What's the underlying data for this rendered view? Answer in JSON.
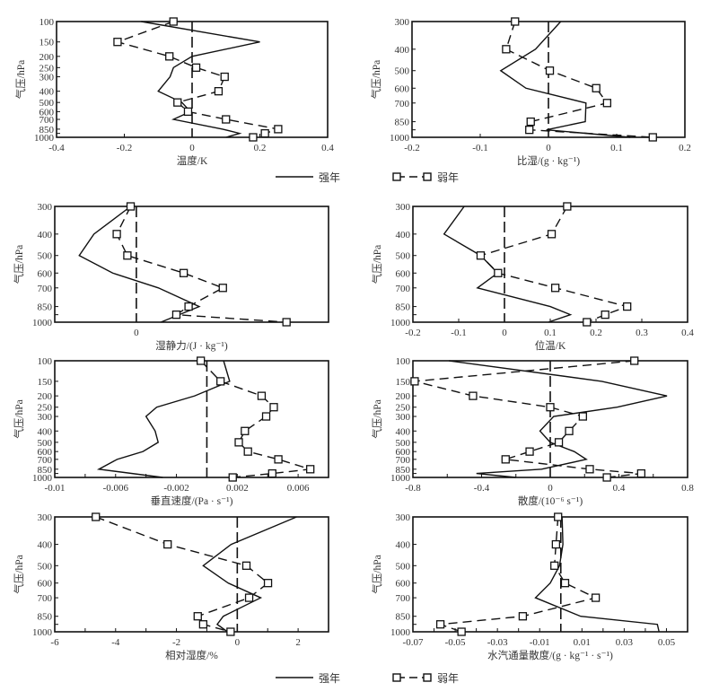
{
  "legend": {
    "strong": "强年",
    "weak": "弱年"
  },
  "chart_data": [
    {
      "type": "line",
      "id": "temperature",
      "xlabel": "温度/K",
      "ylabel": "气压/hPa",
      "xlim": [
        -0.4,
        0.4
      ],
      "xticks": [
        -0.4,
        -0.2,
        0,
        0.2,
        0.4
      ],
      "xtick_labels": [
        "-0.4",
        "-0.2",
        "0",
        "0.2",
        "0.4"
      ],
      "ylim": [
        100,
        1000
      ],
      "yscale": "log",
      "yticks": [
        100,
        150,
        200,
        250,
        300,
        400,
        500,
        600,
        700,
        850,
        925,
        1000
      ],
      "ytick_labels": [
        "100",
        "150",
        "200",
        "250",
        "300",
        "400",
        "500",
        "600",
        "700",
        "850",
        "",
        "1000"
      ],
      "series": [
        {
          "name": "强年",
          "style": "solid",
          "levels": [
            100,
            150,
            200,
            250,
            300,
            400,
            500,
            600,
            700,
            850,
            925,
            1000
          ],
          "values": [
            -0.15,
            0.2,
            0.0,
            -0.055,
            -0.065,
            -0.1,
            -0.03,
            -0.005,
            -0.055,
            0.09,
            0.14,
            0.1
          ]
        },
        {
          "name": "弱年",
          "style": "dashed-square",
          "levels": [
            100,
            150,
            200,
            250,
            300,
            400,
            500,
            600,
            700,
            850,
            925,
            1000
          ],
          "values": [
            -0.055,
            -0.22,
            -0.067,
            0.012,
            0.096,
            0.078,
            -0.043,
            -0.012,
            0.1,
            0.254,
            0.215,
            0.18
          ]
        }
      ]
    },
    {
      "type": "line",
      "id": "specific-humidity",
      "xlabel": "比湿/(g · kg⁻¹)",
      "ylabel": "气压/hPa",
      "xlim": [
        -0.2,
        0.2
      ],
      "xticks": [
        -0.2,
        -0.1,
        0,
        0.1,
        0.2
      ],
      "xtick_labels": [
        "-0.2",
        "-0.1",
        "0",
        "0.1",
        "0.2"
      ],
      "ylim": [
        300,
        1000
      ],
      "yscale": "log",
      "yticks": [
        300,
        400,
        500,
        600,
        700,
        850,
        925,
        1000
      ],
      "ytick_labels": [
        "300",
        "400",
        "500",
        "600",
        "700",
        "850",
        "",
        "1000"
      ],
      "series": [
        {
          "name": "强年",
          "style": "solid",
          "levels": [
            300,
            400,
            500,
            600,
            700,
            850,
            925,
            1000
          ],
          "values": [
            0.018,
            -0.019,
            -0.07,
            -0.033,
            0.055,
            0.054,
            -0.003,
            0.12
          ]
        },
        {
          "name": "弱年",
          "style": "dashed-square",
          "levels": [
            300,
            400,
            500,
            600,
            700,
            850,
            925,
            1000
          ],
          "values": [
            -0.049,
            -0.062,
            0.002,
            0.07,
            0.086,
            -0.026,
            -0.028,
            0.153
          ]
        }
      ]
    },
    {
      "type": "line",
      "id": "moist-static-energy",
      "xlabel": "湿静力/(J · kg⁻¹)",
      "ylabel": "气压/hPa",
      "xlim": [
        -1,
        2.355
      ],
      "xticks": [
        0
      ],
      "xtick_labels": [
        "0"
      ],
      "ylim": [
        300,
        1000
      ],
      "yscale": "log",
      "yticks": [
        300,
        400,
        500,
        600,
        700,
        850,
        925,
        1000
      ],
      "ytick_labels": [
        "300",
        "400",
        "500",
        "600",
        "700",
        "850",
        "",
        "1000"
      ],
      "series": [
        {
          "name": "强年",
          "style": "solid",
          "levels": [
            300,
            400,
            500,
            600,
            700,
            850,
            1000
          ],
          "values": [
            -0.07,
            -0.52,
            -0.7,
            -0.29,
            0.27,
            0.77,
            0.3
          ]
        },
        {
          "name": "弱年",
          "style": "dashed-square",
          "levels": [
            300,
            400,
            500,
            600,
            700,
            850,
            925,
            1000
          ],
          "values": [
            -0.07,
            -0.24,
            -0.11,
            0.58,
            1.06,
            0.64,
            0.49,
            1.84
          ]
        }
      ]
    },
    {
      "type": "line",
      "id": "potential-temperature",
      "xlabel": "位温/K",
      "ylabel": "气压/hPa",
      "xlim": [
        -0.2,
        0.4
      ],
      "xticks": [
        -0.2,
        -0.1,
        0,
        0.1,
        0.2,
        0.3,
        0.4
      ],
      "xtick_labels": [
        "-0.2",
        "-0.1",
        "0",
        "0.1",
        "0.2",
        "0.3",
        "0.4"
      ],
      "ylim": [
        300,
        1000
      ],
      "yscale": "log",
      "yticks": [
        300,
        400,
        500,
        600,
        700,
        850,
        925,
        1000
      ],
      "ytick_labels": [
        "300",
        "400",
        "500",
        "600",
        "700",
        "850",
        "",
        "1000"
      ],
      "series": [
        {
          "name": "强年",
          "style": "solid",
          "levels": [
            300,
            400,
            500,
            600,
            700,
            850,
            925,
            1000
          ],
          "values": [
            -0.088,
            -0.132,
            -0.052,
            -0.015,
            -0.059,
            0.1,
            0.144,
            0.096
          ]
        },
        {
          "name": "弱年",
          "style": "dashed-square",
          "levels": [
            300,
            400,
            500,
            600,
            700,
            850,
            925,
            1000
          ],
          "values": [
            0.137,
            0.103,
            -0.052,
            -0.014,
            0.111,
            0.268,
            0.22,
            0.18
          ]
        }
      ]
    },
    {
      "type": "line",
      "id": "vertical-velocity",
      "xlabel": "垂直速度/(Pa · s⁻¹)",
      "ylabel": "气压/hPa",
      "xlim": [
        -0.01,
        0.008
      ],
      "xticks": [
        -0.01,
        -0.008,
        -0.006,
        -0.004,
        -0.002,
        0,
        0.002,
        0.004,
        0.006,
        0.008
      ],
      "xtick_labels": [
        "-0.01",
        "",
        "-0.006",
        "",
        "-0.002",
        "",
        "0.002",
        "",
        "0.006",
        ""
      ],
      "ylim": [
        100,
        1000
      ],
      "yscale": "log",
      "yticks": [
        100,
        150,
        200,
        250,
        300,
        400,
        500,
        600,
        700,
        850,
        925,
        1000
      ],
      "ytick_labels": [
        "100",
        "150",
        "200",
        "250",
        "300",
        "400",
        "500",
        "600",
        "700",
        "850",
        "",
        "1000"
      ],
      "series": [
        {
          "name": "强年",
          "style": "solid",
          "levels": [
            100,
            150,
            200,
            250,
            300,
            400,
            500,
            600,
            700,
            850,
            1000
          ],
          "values": [
            0.0011,
            0.0015,
            -0.0008,
            -0.0033,
            -0.004,
            -0.0034,
            -0.0032,
            -0.0042,
            -0.0059,
            -0.0071,
            -0.0029
          ]
        },
        {
          "name": "弱年",
          "style": "dashed-square",
          "levels": [
            100,
            150,
            200,
            250,
            300,
            400,
            500,
            600,
            700,
            850,
            925,
            1000
          ],
          "values": [
            -0.0004,
            0.0009,
            0.0036,
            0.0044,
            0.0039,
            0.0025,
            0.0021,
            0.0027,
            0.0047,
            0.0068,
            0.0043,
            0.0017
          ]
        }
      ]
    },
    {
      "type": "line",
      "id": "divergence",
      "xlabel": "散度/(10⁻⁶ s⁻¹)",
      "ylabel": "气压/hPa",
      "xlim": [
        -0.8,
        0.8
      ],
      "xticks": [
        -0.8,
        -0.6,
        -0.4,
        -0.2,
        0,
        0.2,
        0.4,
        0.6,
        0.8
      ],
      "xtick_labels": [
        "-0.8",
        "",
        "-0.4",
        "",
        "0",
        "",
        "0.4",
        "",
        "0.8"
      ],
      "ylim": [
        100,
        1000
      ],
      "yscale": "log",
      "yticks": [
        100,
        150,
        200,
        250,
        300,
        400,
        500,
        600,
        700,
        850,
        925,
        1000
      ],
      "ytick_labels": [
        "100",
        "150",
        "200",
        "250",
        "300",
        "400",
        "500",
        "600",
        "700",
        "850",
        "",
        "1000"
      ],
      "series": [
        {
          "name": "强年",
          "style": "solid",
          "levels": [
            100,
            150,
            200,
            250,
            300,
            400,
            500,
            600,
            700,
            850,
            925,
            1000
          ],
          "values": [
            -0.59,
            0.3,
            0.68,
            0.39,
            0.02,
            -0.06,
            0.0,
            0.14,
            0.21,
            -0.05,
            -0.43,
            -0.2
          ]
        },
        {
          "name": "弱年",
          "style": "dashed-square",
          "levels": [
            100,
            150,
            200,
            250,
            300,
            400,
            500,
            600,
            700,
            850,
            925,
            1000
          ],
          "values": [
            0.49,
            -0.79,
            -0.45,
            0.0,
            0.19,
            0.11,
            0.05,
            -0.12,
            -0.26,
            0.23,
            0.53,
            0.33
          ]
        }
      ]
    },
    {
      "type": "line",
      "id": "relative-humidity",
      "xlabel": "相对湿度/%",
      "ylabel": "气压/hPa",
      "xlim": [
        -6,
        3
      ],
      "xticks": [
        -6,
        -5,
        -4,
        -3,
        -2,
        -1,
        0,
        1,
        2,
        3
      ],
      "xtick_labels": [
        "-6",
        "",
        "-4",
        "",
        "-2",
        "",
        "0",
        "",
        "2",
        ""
      ],
      "ylim": [
        300,
        1000
      ],
      "yscale": "log",
      "yticks": [
        300,
        400,
        500,
        600,
        700,
        850,
        925,
        1000
      ],
      "ytick_labels": [
        "300",
        "400",
        "500",
        "600",
        "700",
        "850",
        "",
        "1000"
      ],
      "series": [
        {
          "name": "强年",
          "style": "solid",
          "levels": [
            300,
            400,
            500,
            600,
            700,
            850,
            925,
            1000
          ],
          "values": [
            1.95,
            -0.2,
            -1.12,
            -0.3,
            0.77,
            -0.46,
            -0.66,
            -0.32
          ]
        },
        {
          "name": "弱年",
          "style": "dashed-square",
          "levels": [
            300,
            400,
            500,
            600,
            700,
            850,
            925,
            1000
          ],
          "values": [
            -4.65,
            -2.29,
            0.3,
            1.01,
            0.39,
            -1.3,
            -1.12,
            -0.22
          ]
        }
      ]
    },
    {
      "type": "line",
      "id": "water-vapor-flux-divergence",
      "xlabel": "水汽通量散度/(g · kg⁻¹ · s⁻¹)",
      "ylabel": "气压/hPa",
      "xlim": [
        -0.07,
        0.06
      ],
      "xticks": [
        -0.07,
        -0.06,
        -0.05,
        -0.04,
        -0.03,
        -0.02,
        -0.01,
        0,
        0.01,
        0.02,
        0.03,
        0.04,
        0.05,
        0.06
      ],
      "xtick_labels": [
        "-0.07",
        "",
        "-0.05",
        "",
        "-0.03",
        "",
        "-0.01",
        "",
        "0.01",
        "",
        "0.03",
        "",
        "0.05",
        ""
      ],
      "ylim": [
        300,
        1000
      ],
      "yscale": "log",
      "yticks": [
        300,
        400,
        500,
        600,
        700,
        850,
        925,
        1000
      ],
      "ytick_labels": [
        "300",
        "400",
        "500",
        "600",
        "700",
        "850",
        "",
        "1000"
      ],
      "series": [
        {
          "name": "强年",
          "style": "solid",
          "levels": [
            300,
            400,
            500,
            600,
            700,
            850,
            925,
            1000
          ],
          "values": [
            0.0006,
            0.001,
            -0.0006,
            -0.005,
            -0.012,
            0.0094,
            0.0457,
            0.0465
          ]
        },
        {
          "name": "弱年",
          "style": "dashed-square",
          "levels": [
            300,
            400,
            500,
            600,
            700,
            850,
            925,
            1000
          ],
          "values": [
            -0.0013,
            -0.0023,
            -0.003,
            0.002,
            0.0165,
            -0.018,
            -0.057,
            -0.047
          ]
        }
      ]
    }
  ]
}
